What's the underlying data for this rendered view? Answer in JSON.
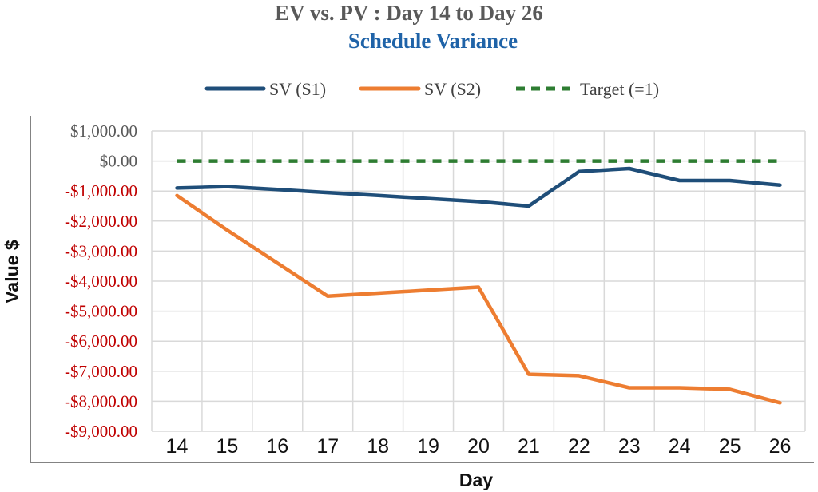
{
  "chart_data": {
    "type": "line",
    "title": "EV vs. PV : Day 14 to Day 26",
    "subtitle": "Schedule Variance",
    "xlabel": "Day",
    "ylabel": "Value $",
    "x": [
      14,
      15,
      16,
      17,
      18,
      19,
      20,
      21,
      22,
      23,
      24,
      25,
      26
    ],
    "ylim": [
      -9000,
      1000
    ],
    "yticks": [
      1000,
      0,
      -1000,
      -2000,
      -3000,
      -4000,
      -5000,
      -6000,
      -7000,
      -8000,
      -9000
    ],
    "ytick_labels": [
      "$1,000.00",
      "$0.00",
      "-$1,000.00",
      "-$2,000.00",
      "-$3,000.00",
      "-$4,000.00",
      "-$5,000.00",
      "-$6,000.00",
      "-$7,000.00",
      "-$8,000.00",
      "-$9,000.00"
    ],
    "grid": true,
    "legend_position": "top",
    "series": [
      {
        "name": "SV (S1)",
        "color": "#1f4e79",
        "style": "solid",
        "values": [
          -900,
          -850,
          -950,
          -1050,
          -1150,
          -1250,
          -1350,
          -1500,
          -350,
          -250,
          -650,
          -650,
          -800
        ]
      },
      {
        "name": "SV (S2)",
        "color": "#ed7d31",
        "style": "solid",
        "values": [
          -1150,
          -2300,
          -3400,
          -4500,
          -4400,
          -4300,
          -4200,
          -7100,
          -7150,
          -7550,
          -7550,
          -7600,
          -8050
        ]
      },
      {
        "name": "Target (=1)",
        "color": "#2e7d32",
        "style": "dashed",
        "values": [
          0,
          0,
          0,
          0,
          0,
          0,
          0,
          0,
          0,
          0,
          0,
          0,
          0
        ]
      }
    ],
    "colors": {
      "positive_tick": "#595959",
      "negative_tick": "#c00000"
    }
  }
}
